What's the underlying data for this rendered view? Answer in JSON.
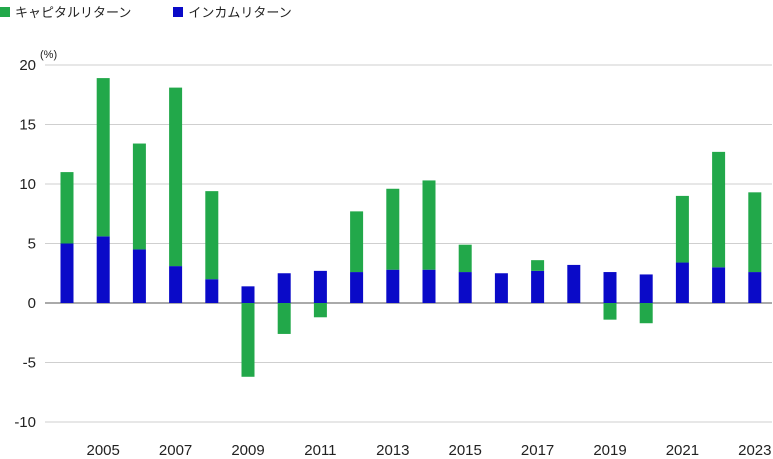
{
  "chart_data": {
    "type": "bar",
    "stacked": true,
    "unit_label": "(%)",
    "categories": [
      "2004",
      "2005",
      "2006",
      "2007",
      "2008",
      "2009",
      "2010",
      "2011",
      "2012",
      "2013",
      "2014",
      "2015",
      "2016",
      "2017",
      "2018",
      "2019",
      "2020",
      "2021",
      "2022",
      "2023"
    ],
    "x_tick_labels": [
      "2005",
      "2007",
      "2009",
      "2011",
      "2013",
      "2015",
      "2017",
      "2019",
      "2021",
      "2023"
    ],
    "ylim": [
      -10,
      20
    ],
    "y_ticks": [
      20,
      15,
      10,
      5,
      0,
      -5,
      -10
    ],
    "grid": true,
    "legend_position": "top-left",
    "series": [
      {
        "name": "インカムリターン",
        "color": "#0a0ac8",
        "values": [
          5.0,
          5.6,
          4.5,
          3.1,
          2.0,
          1.4,
          2.5,
          2.7,
          2.6,
          2.8,
          2.8,
          2.6,
          2.5,
          2.7,
          3.2,
          2.6,
          2.4,
          3.4,
          3.0,
          2.6
        ]
      },
      {
        "name": "キャピタルリターン",
        "color": "#22a84a",
        "values": [
          6.0,
          13.3,
          8.9,
          15.0,
          7.4,
          -6.2,
          -2.6,
          -1.2,
          5.1,
          6.8,
          7.5,
          2.3,
          0.0,
          0.9,
          0.0,
          -1.4,
          -1.7,
          5.6,
          9.7,
          6.7
        ]
      }
    ]
  }
}
